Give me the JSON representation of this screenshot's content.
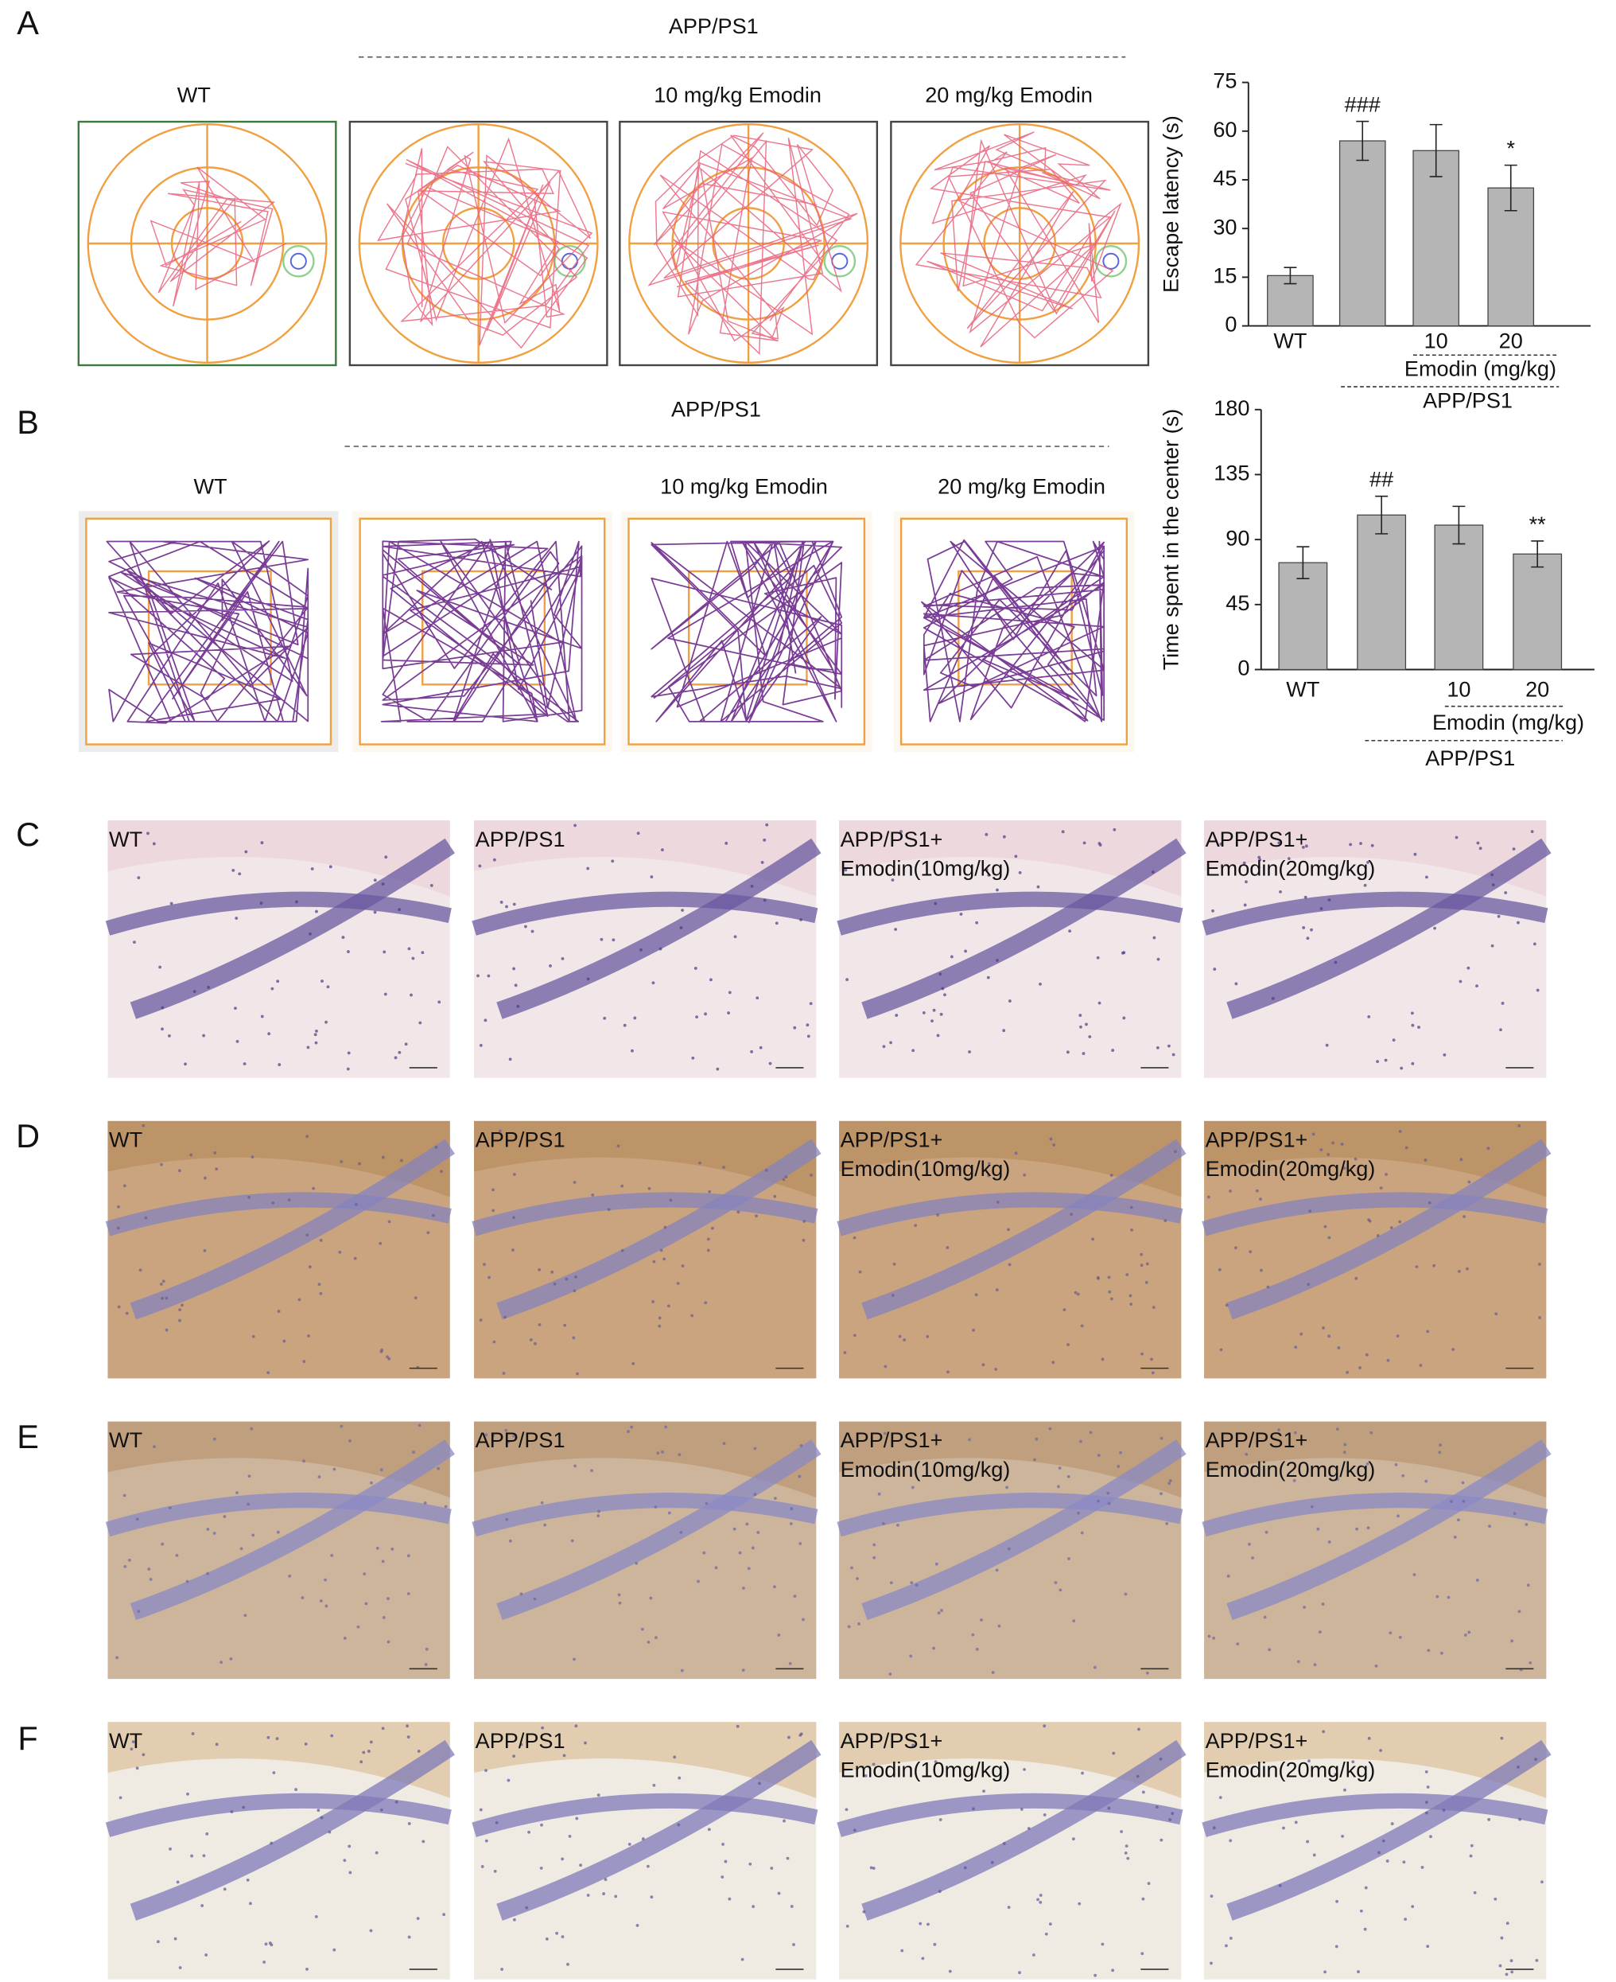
{
  "panels": [
    "A",
    "B",
    "C",
    "D",
    "E",
    "F"
  ],
  "maze": {
    "group": "APP/PS1",
    "titles": [
      "WT",
      "10 mg/kg Emodin",
      "20 mg/kg Emodin"
    ]
  },
  "open_field": {
    "group": "APP/PS1",
    "titles": [
      "WT",
      "10 mg/kg Emodin",
      "20 mg/kg Emodin"
    ]
  },
  "histology": {
    "labels": [
      [
        "WT"
      ],
      [
        "APP/PS1"
      ],
      [
        "APP/PS1+",
        "Emodin(10mg/kg)"
      ],
      [
        "APP/PS1+",
        "Emodin(20mg/kg)"
      ]
    ]
  },
  "chart_data": [
    {
      "type": "bar",
      "ylabel": "Escape latency (s)",
      "categories": [
        "WT",
        null,
        "10",
        "20"
      ],
      "values": [
        15.5,
        57,
        54,
        42.5
      ],
      "errors": [
        2.5,
        6,
        8,
        7
      ],
      "significance": [
        null,
        "###",
        null,
        "*"
      ],
      "group_labels": [
        "Emodin (mg/kg)",
        "APP/PS1"
      ],
      "ylim": [
        0,
        75
      ],
      "yticks": [
        0,
        15,
        30,
        45,
        60,
        75
      ],
      "color": "#b5b5b5"
    },
    {
      "type": "bar",
      "ylabel": "Time spent in the center (s)",
      "categories": [
        "WT",
        null,
        "10",
        "20"
      ],
      "values": [
        74,
        107,
        100,
        80
      ],
      "errors": [
        11,
        13,
        13,
        9
      ],
      "significance": [
        null,
        "##",
        null,
        "**"
      ],
      "group_labels": [
        "Emodin (mg/kg)",
        "APP/PS1"
      ],
      "ylim": [
        0,
        180
      ],
      "yticks": [
        0,
        45,
        90,
        135,
        180
      ],
      "color": "#b5b5b5"
    }
  ]
}
